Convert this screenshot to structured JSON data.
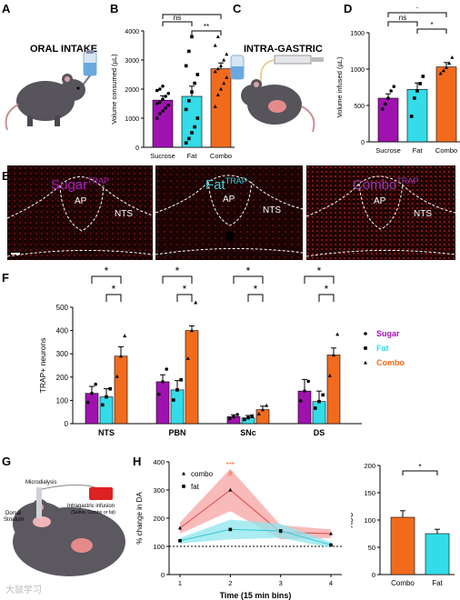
{
  "panels": {
    "A": {
      "letter": "A",
      "label": "ORAL INTAKE"
    },
    "B": {
      "letter": "B"
    },
    "C": {
      "letter": "C",
      "label": "INTRA-GASTRIC"
    },
    "D": {
      "letter": "D"
    },
    "E": {
      "letter": "E",
      "titles": [
        {
          "name": "Sugar",
          "sup": "TRAP",
          "color": "#b01cc4"
        },
        {
          "name": "Fat",
          "sup": "TRAP",
          "color": "#3ad3e0"
        },
        {
          "name": "Combo",
          "sup": "TRAP",
          "color": "#8a2aa6"
        }
      ],
      "region_labels": {
        "ap": "AP",
        "nts": "NTS"
      }
    },
    "F": {
      "letter": "F"
    },
    "G": {
      "letter": "G",
      "labels": {
        "microdialysis": "Microdialysis",
        "dorsal": "Dorsal",
        "striatum": "Striatum",
        "infusion": "Intragastric infusion",
        "infusion_sub": "(Saline, Combo or fat)"
      }
    },
    "H": {
      "letter": "H"
    },
    "watermark": "大鼠学习"
  },
  "colors": {
    "sugar": "#a012b0",
    "fat": "#33dce8",
    "combo": "#f26b1d"
  },
  "chart_data": [
    {
      "id": "B",
      "type": "bar",
      "categories": [
        "Sucrose",
        "Fat",
        "Combo"
      ],
      "values": [
        1620,
        1750,
        2700
      ],
      "errors": [
        150,
        350,
        200
      ],
      "points": [
        [
          1000,
          1150,
          1250,
          1350,
          1450,
          1500,
          1550,
          1650,
          1750,
          1850,
          1950,
          2000,
          2100
        ],
        [
          150,
          300,
          500,
          700,
          1000,
          1300,
          1600,
          1900,
          2200,
          2500,
          2800,
          3300,
          3800
        ],
        [
          1400,
          1800,
          2000,
          2200,
          2400,
          2600,
          2700,
          2800,
          3000,
          3200,
          3500,
          3800
        ]
      ],
      "ylabel": "Volume consumed (µL)",
      "ylim": [
        0,
        4000
      ],
      "yticks": [
        "0",
        "1000",
        "2000",
        "3000",
        "4000"
      ],
      "sig": [
        {
          "from": 0,
          "to": 1,
          "label": "ns"
        },
        {
          "from": 1,
          "to": 2,
          "label": "**"
        },
        {
          "from": 0,
          "to": 2,
          "label": "**"
        }
      ]
    },
    {
      "id": "D",
      "type": "bar",
      "categories": [
        "Sucrose",
        "Fat",
        "Combo"
      ],
      "values": [
        600,
        720,
        1030
      ],
      "errors": [
        60,
        90,
        60
      ],
      "points": [
        [
          450,
          520,
          600,
          700,
          760
        ],
        [
          350,
          600,
          700,
          800,
          900
        ],
        [
          940,
          980,
          1020,
          1080,
          1160
        ]
      ],
      "ylabel": "Volume infused (µL)",
      "ylim": [
        0,
        1500
      ],
      "yticks": [
        "0",
        "500",
        "1000",
        "1500"
      ],
      "sig": [
        {
          "from": 0,
          "to": 1,
          "label": "ns"
        },
        {
          "from": 1,
          "to": 2,
          "label": "*"
        },
        {
          "from": 0,
          "to": 2,
          "label": "*"
        }
      ]
    },
    {
      "id": "F",
      "type": "bar",
      "groups": [
        "NTS",
        "PBN",
        "SNc",
        "DS"
      ],
      "series": [
        {
          "name": "Sugar",
          "values": [
            130,
            180,
            30,
            140
          ],
          "errors": [
            30,
            30,
            8,
            50
          ]
        },
        {
          "name": "Fat",
          "values": [
            115,
            145,
            25,
            95
          ],
          "errors": [
            35,
            40,
            10,
            45
          ]
        },
        {
          "name": "Combo",
          "values": [
            290,
            400,
            60,
            295
          ],
          "errors": [
            40,
            20,
            15,
            30
          ]
        }
      ],
      "ylabel": "TRAP+ neurons",
      "ylim": [
        0,
        500
      ],
      "yticks": [
        "0",
        "100",
        "200",
        "300",
        "400",
        "500"
      ],
      "sig_labels": [
        "*",
        "*"
      ],
      "legend": [
        "Sugar",
        "Fat",
        "Combo"
      ]
    },
    {
      "id": "H-line",
      "type": "line",
      "x": [
        1,
        2,
        3,
        4
      ],
      "series": [
        {
          "name": "combo",
          "values": [
            165,
            300,
            150,
            145
          ],
          "error_band": [
            20,
            75,
            25,
            15
          ]
        },
        {
          "name": "fat",
          "values": [
            120,
            160,
            155,
            105
          ],
          "error_band": [
            10,
            35,
            25,
            10
          ]
        }
      ],
      "ylabel": "% change in DA",
      "xlabel": "Time (15 min bins)",
      "ylim": [
        0,
        400
      ],
      "yticks": [
        "0",
        "100",
        "200",
        "300",
        "400"
      ],
      "xticks": [
        "1",
        "2",
        "3",
        "4"
      ],
      "annotations": [
        "***",
        "#"
      ],
      "baseline": 100
    },
    {
      "id": "H-auc",
      "type": "bar",
      "categories": [
        "Combo",
        "Fat"
      ],
      "values": [
        105,
        75
      ],
      "errors": [
        12,
        8
      ],
      "ylabel": "AUC",
      "ylim": [
        0,
        200
      ],
      "yticks": [
        "0",
        "50",
        "100",
        "150",
        "200"
      ],
      "sig": [
        {
          "from": 0,
          "to": 1,
          "label": "*"
        }
      ]
    }
  ]
}
